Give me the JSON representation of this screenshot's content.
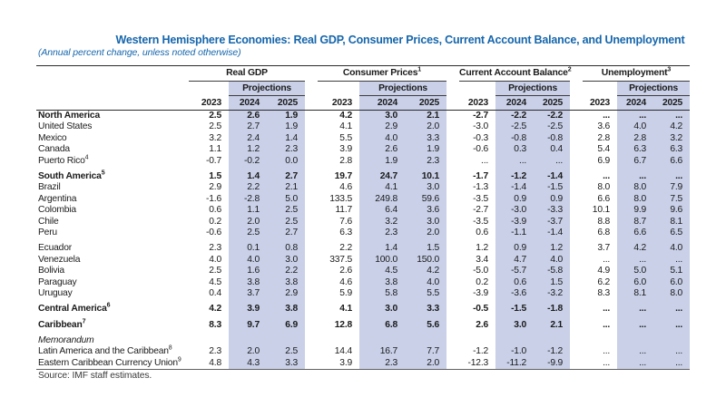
{
  "page": {
    "title": "Western Hemisphere Economies: Real GDP, Consumer Prices, Current Account Balance, and Unemployment",
    "subtitle": "(Annual percent change, unless noted otherwise)",
    "source": "Source: IMF staff estimates."
  },
  "colors": {
    "band": "#c9d0e8",
    "accent_blue": "#1566ac"
  },
  "table": {
    "projections_label": "Projections",
    "years": [
      "2023",
      "2024",
      "2025"
    ],
    "groups": [
      {
        "label": "Real GDP",
        "sup": ""
      },
      {
        "label": "Consumer Prices",
        "sup": "1"
      },
      {
        "label": "Current Account Balance",
        "sup": "2"
      },
      {
        "label": "Unemployment",
        "sup": "3"
      }
    ],
    "rows": [
      {
        "label": "North America",
        "sup": "",
        "bold": true,
        "values": [
          "2.5",
          "2.6",
          "1.9",
          "4.2",
          "3.0",
          "2.1",
          "-2.7",
          "-2.2",
          "-2.2",
          "...",
          "...",
          "..."
        ]
      },
      {
        "label": "United States",
        "values": [
          "2.5",
          "2.7",
          "1.9",
          "4.1",
          "2.9",
          "2.0",
          "-3.0",
          "-2.5",
          "-2.5",
          "3.6",
          "4.0",
          "4.2"
        ]
      },
      {
        "label": "Mexico",
        "values": [
          "3.2",
          "2.4",
          "1.4",
          "5.5",
          "4.0",
          "3.3",
          "-0.3",
          "-0.8",
          "-0.8",
          "2.8",
          "2.8",
          "3.2"
        ]
      },
      {
        "label": "Canada",
        "values": [
          "1.1",
          "1.2",
          "2.3",
          "3.9",
          "2.6",
          "1.9",
          "-0.6",
          "0.3",
          "0.4",
          "5.4",
          "6.3",
          "6.3"
        ]
      },
      {
        "label": "Puerto Rico",
        "sup": "4",
        "values": [
          "-0.7",
          "-0.2",
          "0.0",
          "2.8",
          "1.9",
          "2.3",
          "...",
          "...",
          "...",
          "6.9",
          "6.7",
          "6.6"
        ]
      },
      {
        "gap": true
      },
      {
        "label": "South America",
        "sup": "5",
        "bold": true,
        "values": [
          "1.5",
          "1.4",
          "2.7",
          "19.7",
          "24.7",
          "10.1",
          "-1.7",
          "-1.2",
          "-1.4",
          "...",
          "...",
          "..."
        ]
      },
      {
        "label": "Brazil",
        "values": [
          "2.9",
          "2.2",
          "2.1",
          "4.6",
          "4.1",
          "3.0",
          "-1.3",
          "-1.4",
          "-1.5",
          "8.0",
          "8.0",
          "7.9"
        ]
      },
      {
        "label": "Argentina",
        "values": [
          "-1.6",
          "-2.8",
          "5.0",
          "133.5",
          "249.8",
          "59.6",
          "-3.5",
          "0.9",
          "0.9",
          "6.6",
          "8.0",
          "7.5"
        ]
      },
      {
        "label": "Colombia",
        "values": [
          "0.6",
          "1.1",
          "2.5",
          "11.7",
          "6.4",
          "3.6",
          "-2.7",
          "-3.0",
          "-3.3",
          "10.1",
          "9.9",
          "9.6"
        ]
      },
      {
        "label": "Chile",
        "values": [
          "0.2",
          "2.0",
          "2.5",
          "7.6",
          "3.2",
          "3.0",
          "-3.5",
          "-3.9",
          "-3.7",
          "8.8",
          "8.7",
          "8.1"
        ]
      },
      {
        "label": "Peru",
        "values": [
          "-0.6",
          "2.5",
          "2.7",
          "6.3",
          "2.3",
          "2.0",
          "0.6",
          "-1.1",
          "-1.4",
          "6.8",
          "6.6",
          "6.5"
        ]
      },
      {
        "gap": true
      },
      {
        "label": "Ecuador",
        "values": [
          "2.3",
          "0.1",
          "0.8",
          "2.2",
          "1.4",
          "1.5",
          "1.2",
          "0.9",
          "1.2",
          "3.7",
          "4.2",
          "4.0"
        ]
      },
      {
        "label": "Venezuela",
        "values": [
          "4.0",
          "4.0",
          "3.0",
          "337.5",
          "100.0",
          "150.0",
          "3.4",
          "4.7",
          "4.0",
          "...",
          "...",
          "..."
        ]
      },
      {
        "label": "Bolivia",
        "values": [
          "2.5",
          "1.6",
          "2.2",
          "2.6",
          "4.5",
          "4.2",
          "-5.0",
          "-5.7",
          "-5.8",
          "4.9",
          "5.0",
          "5.1"
        ]
      },
      {
        "label": "Paraguay",
        "values": [
          "4.5",
          "3.8",
          "3.8",
          "4.6",
          "3.8",
          "4.0",
          "0.2",
          "0.6",
          "1.5",
          "6.2",
          "6.0",
          "6.0"
        ]
      },
      {
        "label": "Uruguay",
        "values": [
          "0.4",
          "3.7",
          "2.9",
          "5.9",
          "5.8",
          "5.5",
          "-3.9",
          "-3.6",
          "-3.2",
          "8.3",
          "8.1",
          "8.0"
        ]
      },
      {
        "gap": true
      },
      {
        "label": "Central America",
        "sup": "6",
        "bold": true,
        "values": [
          "4.2",
          "3.9",
          "3.8",
          "4.1",
          "3.0",
          "3.3",
          "-0.5",
          "-1.5",
          "-1.8",
          "...",
          "...",
          "..."
        ]
      },
      {
        "gap": true
      },
      {
        "label": "Caribbean",
        "sup": "7",
        "bold": true,
        "values": [
          "8.3",
          "9.7",
          "6.9",
          "12.8",
          "6.8",
          "5.6",
          "2.6",
          "3.0",
          "2.1",
          "...",
          "...",
          "..."
        ]
      },
      {
        "gap": true
      },
      {
        "label": "Memorandum",
        "italic": true,
        "values": [
          "",
          "",
          "",
          "",
          "",
          "",
          "",
          "",
          "",
          "",
          "",
          ""
        ]
      },
      {
        "label": "Latin America and the Caribbean",
        "sup": "8",
        "values": [
          "2.3",
          "2.0",
          "2.5",
          "14.4",
          "16.7",
          "7.7",
          "-1.2",
          "-1.0",
          "-1.2",
          "...",
          "...",
          "..."
        ]
      },
      {
        "label": "Eastern Caribbean Currency Union",
        "sup": "9",
        "values": [
          "4.8",
          "4.3",
          "3.3",
          "3.9",
          "2.3",
          "2.0",
          "-12.3",
          "-11.2",
          "-9.9",
          "...",
          "...",
          "..."
        ]
      }
    ]
  }
}
